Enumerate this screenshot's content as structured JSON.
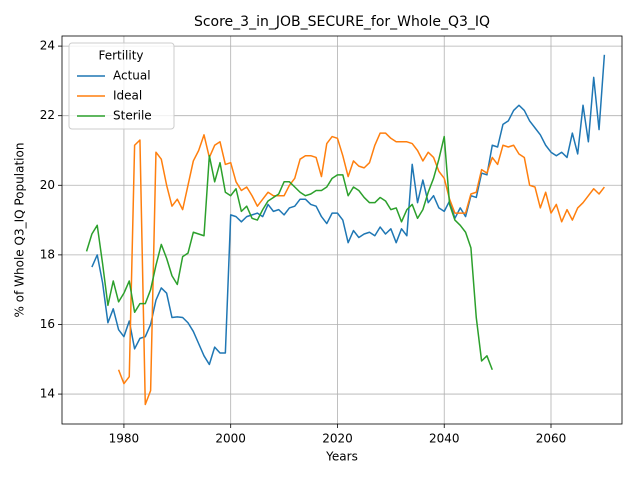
{
  "chart_data": {
    "type": "line",
    "title": "Score_3_in_JOB_SECURE_for_Whole_Q3_IQ",
    "x_label": "Years",
    "y_label": "% of Whole Q3_IQ Population",
    "legend_title": "Fertility",
    "legend_position": "upper-left",
    "grid": true,
    "xlim": [
      1968.4,
      2073.3
    ],
    "ylim": [
      13.14,
      24.29
    ],
    "xticks": [
      1980,
      2000,
      2020,
      2040,
      2060
    ],
    "yticks": [
      14,
      16,
      18,
      20,
      22,
      24
    ],
    "x": [
      1973,
      1974,
      1975,
      1976,
      1977,
      1978,
      1979,
      1980,
      1981,
      1982,
      1983,
      1984,
      1985,
      1986,
      1987,
      1988,
      1989,
      1990,
      1991,
      1992,
      1993,
      1994,
      1995,
      1996,
      1997,
      1998,
      1999,
      2000,
      2001,
      2002,
      2003,
      2004,
      2005,
      2006,
      2007,
      2008,
      2009,
      2010,
      2011,
      2012,
      2013,
      2014,
      2015,
      2016,
      2017,
      2018,
      2019,
      2020,
      2021,
      2022,
      2023,
      2024,
      2025,
      2026,
      2027,
      2028,
      2029,
      2030,
      2031,
      2032,
      2033,
      2034,
      2035,
      2036,
      2037,
      2038,
      2039,
      2040,
      2041,
      2042,
      2043,
      2044,
      2045,
      2046,
      2047,
      2048,
      2049,
      2050,
      2051,
      2052,
      2053,
      2054,
      2055,
      2056,
      2057,
      2058,
      2059,
      2060,
      2061,
      2062,
      2063,
      2064,
      2065,
      2066,
      2067,
      2068,
      2069,
      2070
    ],
    "series": [
      {
        "name": "Actual",
        "color": "#1f77b4",
        "values": [
          null,
          17.65,
          18.0,
          17.2,
          16.05,
          16.45,
          15.85,
          15.65,
          16.1,
          15.3,
          15.6,
          15.65,
          16.0,
          16.7,
          17.05,
          16.9,
          16.2,
          16.22,
          16.2,
          16.05,
          15.8,
          15.45,
          15.1,
          14.85,
          15.35,
          15.18,
          15.18,
          19.15,
          19.1,
          18.95,
          19.1,
          19.15,
          19.2,
          19.1,
          19.45,
          19.25,
          19.3,
          19.15,
          19.35,
          19.4,
          19.6,
          19.6,
          19.45,
          19.4,
          19.1,
          18.9,
          19.2,
          19.2,
          19.0,
          18.35,
          18.7,
          18.5,
          18.6,
          18.65,
          18.55,
          18.8,
          18.6,
          18.75,
          18.35,
          18.75,
          18.55,
          20.6,
          19.5,
          20.15,
          19.5,
          19.7,
          19.35,
          19.25,
          19.55,
          19.05,
          19.35,
          19.1,
          19.7,
          19.65,
          20.35,
          20.3,
          21.15,
          21.1,
          21.75,
          21.85,
          22.15,
          22.3,
          22.15,
          21.85,
          21.65,
          21.45,
          21.15,
          20.95,
          20.85,
          20.95,
          20.8,
          21.5,
          20.9,
          22.3,
          21.25,
          23.1,
          21.6,
          23.75
        ]
      },
      {
        "name": "Ideal",
        "color": "#ff7f0e",
        "values": [
          null,
          null,
          null,
          null,
          null,
          null,
          14.7,
          14.3,
          14.5,
          21.15,
          21.3,
          13.7,
          14.1,
          20.95,
          20.75,
          20.0,
          19.4,
          19.6,
          19.3,
          20.0,
          20.7,
          21.0,
          21.45,
          20.8,
          21.15,
          21.25,
          20.6,
          20.65,
          20.1,
          19.85,
          19.95,
          19.7,
          19.4,
          19.6,
          19.8,
          19.7,
          19.7,
          19.7,
          20.0,
          20.2,
          20.75,
          20.85,
          20.85,
          20.8,
          20.25,
          21.2,
          21.4,
          21.35,
          20.85,
          20.25,
          20.7,
          20.55,
          20.5,
          20.65,
          21.15,
          21.5,
          21.5,
          21.35,
          21.25,
          21.25,
          21.25,
          21.2,
          21.0,
          20.7,
          20.95,
          20.8,
          20.4,
          20.2,
          19.6,
          19.2,
          19.2,
          19.2,
          19.75,
          19.8,
          20.45,
          20.35,
          20.8,
          20.6,
          21.15,
          21.1,
          21.15,
          20.9,
          20.8,
          20.0,
          19.95,
          19.35,
          19.8,
          19.2,
          19.45,
          18.95,
          19.3,
          19.0,
          19.35,
          19.5,
          19.7,
          19.9,
          19.75,
          19.95
        ]
      },
      {
        "name": "Sterile",
        "color": "#2ca02c",
        "values": [
          18.1,
          18.6,
          18.85,
          17.75,
          16.55,
          17.25,
          16.65,
          16.9,
          17.25,
          16.35,
          16.6,
          16.6,
          17.0,
          17.7,
          18.3,
          17.9,
          17.4,
          17.15,
          17.95,
          18.05,
          18.65,
          18.6,
          18.55,
          20.85,
          20.1,
          20.65,
          19.8,
          19.7,
          19.9,
          19.25,
          19.4,
          19.05,
          19.0,
          19.3,
          19.55,
          19.65,
          19.75,
          20.1,
          20.1,
          19.95,
          19.8,
          19.7,
          19.75,
          19.85,
          19.85,
          19.95,
          20.2,
          20.3,
          20.3,
          19.7,
          19.95,
          19.85,
          19.65,
          19.5,
          19.5,
          19.65,
          19.55,
          19.3,
          19.35,
          18.95,
          19.3,
          19.45,
          19.05,
          19.3,
          19.8,
          20.2,
          20.75,
          21.4,
          19.45,
          19.0,
          18.85,
          18.65,
          18.2,
          16.2,
          14.95,
          15.1,
          14.7,
          null,
          null,
          null,
          null,
          null,
          null,
          null,
          null,
          null,
          null,
          null,
          null,
          null,
          null,
          null,
          null,
          null,
          null,
          null,
          null,
          null
        ]
      }
    ]
  }
}
